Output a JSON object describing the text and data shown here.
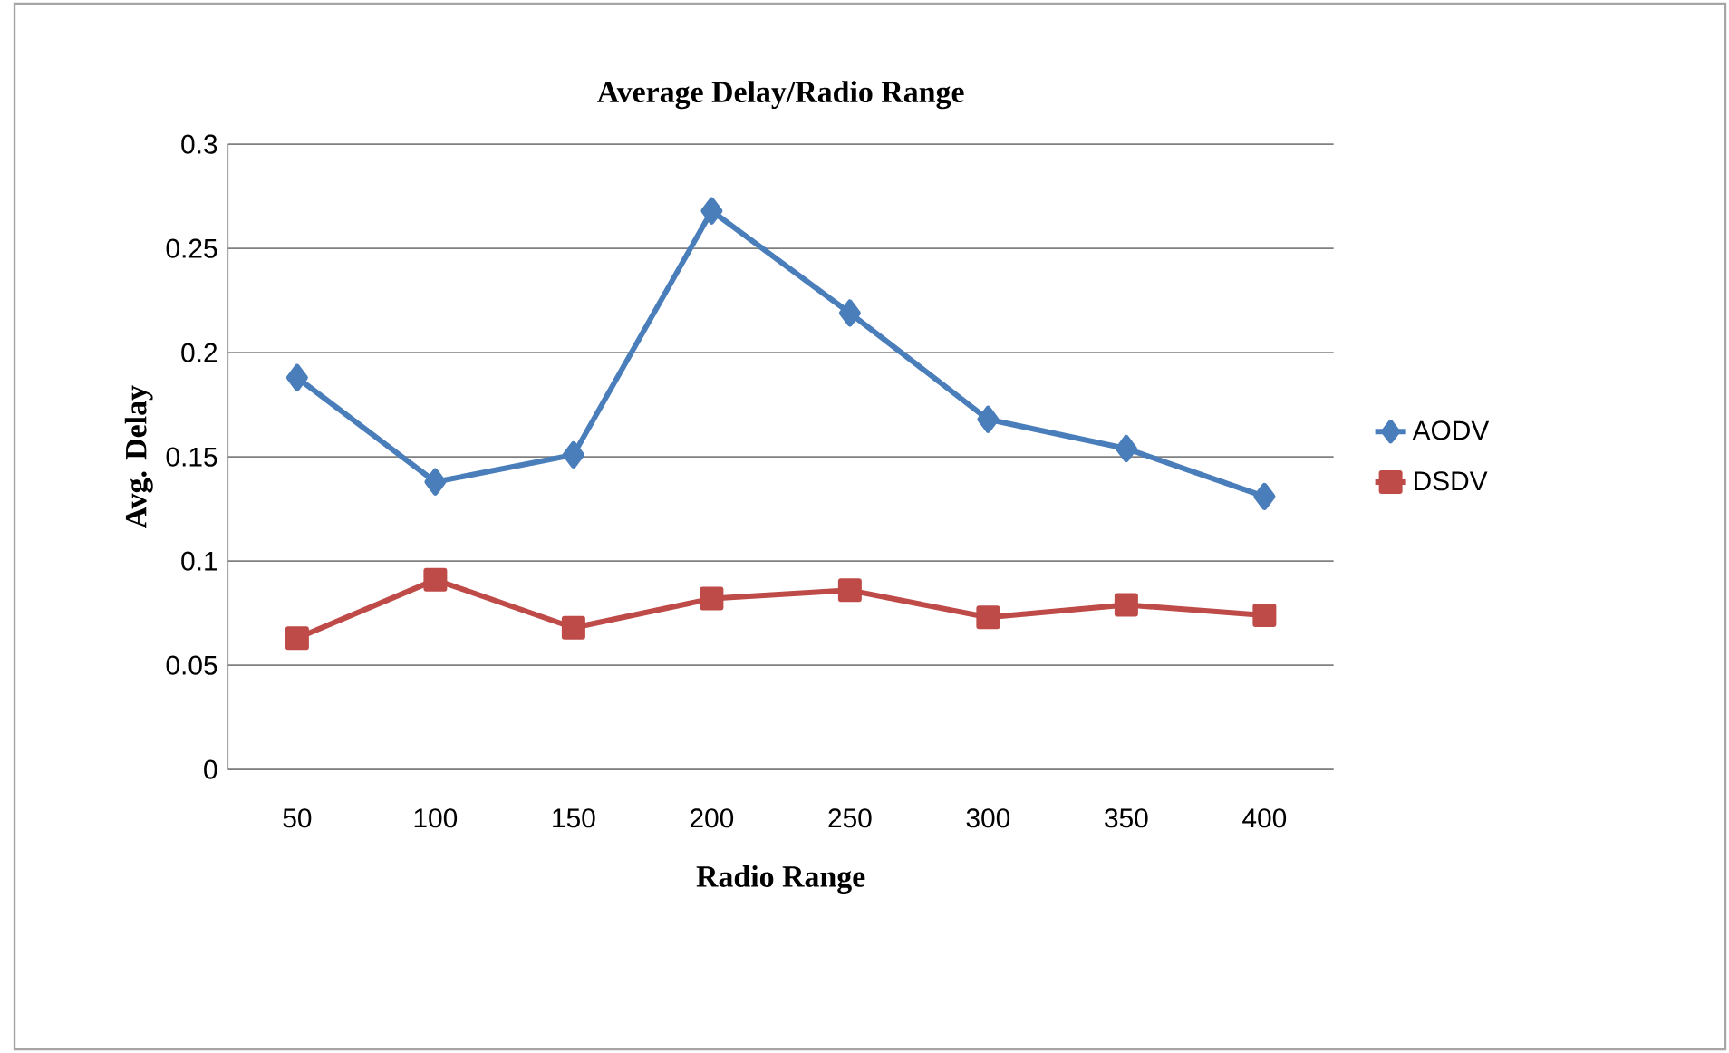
{
  "chart_data": {
    "type": "line",
    "title": "Average Delay/Radio Range",
    "xlabel": "Radio Range",
    "ylabel": "Avg. Delay",
    "categories": [
      "50",
      "100",
      "150",
      "200",
      "250",
      "300",
      "350",
      "400"
    ],
    "series": [
      {
        "name": "AODV",
        "color": "#4a7ebb",
        "marker": "diamond",
        "values": [
          0.188,
          0.138,
          0.151,
          0.268,
          0.219,
          0.168,
          0.154,
          0.131
        ]
      },
      {
        "name": "DSDV",
        "color": "#be4b48",
        "marker": "square",
        "values": [
          0.063,
          0.091,
          0.068,
          0.082,
          0.086,
          0.073,
          0.079,
          0.074
        ]
      }
    ],
    "ylim": [
      0,
      0.3
    ],
    "yticks": [
      0,
      0.05,
      0.1,
      0.15,
      0.2,
      0.25,
      0.3
    ],
    "grid": "y",
    "legend": "right",
    "line_style": "solid"
  }
}
